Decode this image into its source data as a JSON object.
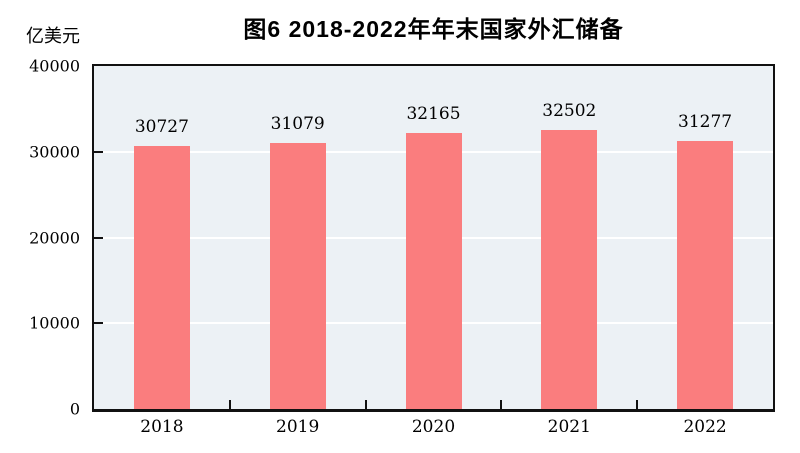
{
  "chart_data": {
    "type": "bar",
    "title": "图6  2018-2022年年末国家外汇储备",
    "ylabel": "亿美元",
    "xlabel": "",
    "categories": [
      "2018",
      "2019",
      "2020",
      "2021",
      "2022"
    ],
    "values": [
      30727,
      31079,
      32165,
      32502,
      31277
    ],
    "data_labels": [
      "30727",
      "31079",
      "32165",
      "32502",
      "31277"
    ],
    "ylim": [
      0,
      40000
    ],
    "yticks": [
      0,
      10000,
      20000,
      30000,
      40000
    ],
    "grid": true,
    "legend": "none",
    "colors": {
      "bar": "#FA7D7E",
      "plot_background": "#ECF1F5",
      "gridline": "#FFFFFF",
      "axis": "#111111",
      "text": "#000000"
    }
  }
}
